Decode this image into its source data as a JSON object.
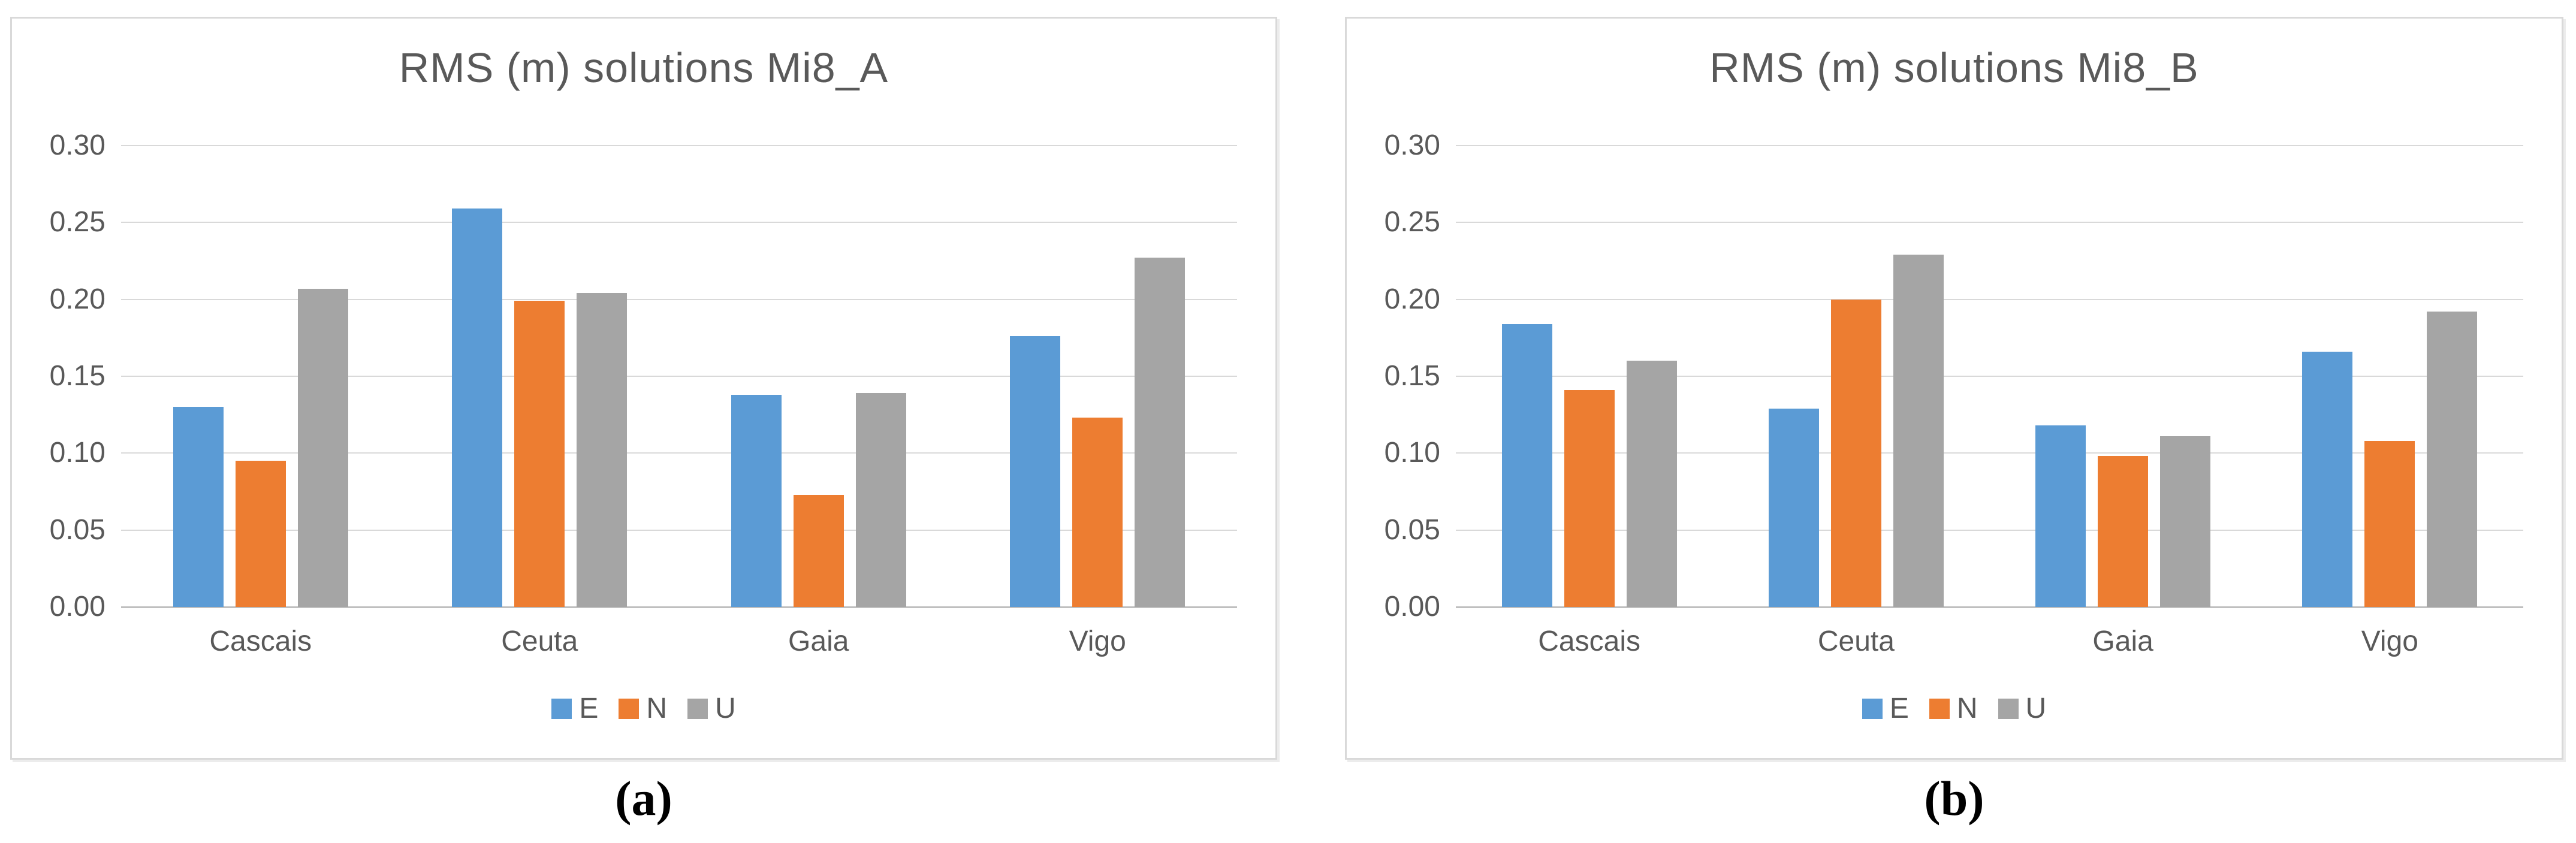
{
  "page": {
    "background": "#FFFFFF"
  },
  "figure": {
    "captions": {
      "left": "(a)",
      "right": "(b)"
    }
  },
  "style": {
    "title_color": "#595959",
    "tick_label_color": "#595959",
    "gridline_color": "#D9D9D9",
    "axis_line_color": "#BFBFBF",
    "panel_border_color": "#D9D9D9",
    "series_colors": {
      "E": "#5B9BD5",
      "N": "#ED7D31",
      "U": "#A5A5A5"
    }
  },
  "chart_data": [
    {
      "type": "bar",
      "title": "RMS (m) solutions Mi8_A",
      "categories": [
        "Cascais",
        "Ceuta",
        "Gaia",
        "Vigo"
      ],
      "series": [
        {
          "name": "E",
          "color": "#5B9BD5",
          "values": [
            0.13,
            0.259,
            0.138,
            0.176
          ]
        },
        {
          "name": "N",
          "color": "#ED7D31",
          "values": [
            0.095,
            0.199,
            0.073,
            0.123
          ]
        },
        {
          "name": "U",
          "color": "#A5A5A5",
          "values": [
            0.207,
            0.204,
            0.139,
            0.227
          ]
        }
      ],
      "xlabel": "",
      "ylabel": "",
      "ylim": [
        0,
        0.3
      ],
      "ytick_step": 0.05,
      "ytick_labels": [
        "0.00",
        "0.05",
        "0.10",
        "0.15",
        "0.20",
        "0.25",
        "0.30"
      ],
      "grid": true,
      "legend_position": "bottom"
    },
    {
      "type": "bar",
      "title": "RMS (m) solutions Mi8_B",
      "categories": [
        "Cascais",
        "Ceuta",
        "Gaia",
        "Vigo"
      ],
      "series": [
        {
          "name": "E",
          "color": "#5B9BD5",
          "values": [
            0.184,
            0.129,
            0.118,
            0.166
          ]
        },
        {
          "name": "N",
          "color": "#ED7D31",
          "values": [
            0.141,
            0.2,
            0.098,
            0.108
          ]
        },
        {
          "name": "U",
          "color": "#A5A5A5",
          "values": [
            0.16,
            0.229,
            0.111,
            0.192
          ]
        }
      ],
      "xlabel": "",
      "ylabel": "",
      "ylim": [
        0,
        0.3
      ],
      "ytick_step": 0.05,
      "ytick_labels": [
        "0.00",
        "0.05",
        "0.10",
        "0.15",
        "0.20",
        "0.25",
        "0.30"
      ],
      "grid": true,
      "legend_position": "bottom"
    }
  ]
}
